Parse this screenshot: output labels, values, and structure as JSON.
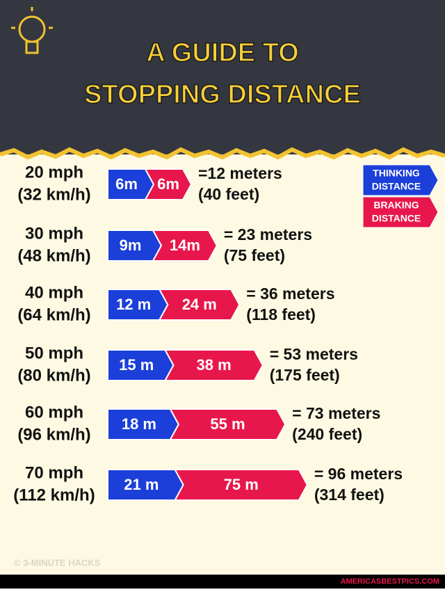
{
  "chart_data": {
    "type": "bar",
    "orientation": "horizontal",
    "stacked": true,
    "title": [
      "A GUIDE TO",
      "STOPPING DISTANCE"
    ],
    "categories": [
      [
        "20 mph",
        "(32 km/h)"
      ],
      [
        "30 mph",
        "(48 km/h)"
      ],
      [
        "40 mph",
        "(64 km/h)"
      ],
      [
        "50 mph",
        "(80 km/h)"
      ],
      [
        "60 mph",
        "(96 km/h)"
      ],
      [
        "70 mph",
        "(112 km/h)"
      ]
    ],
    "series": [
      {
        "name": [
          "THINKING",
          "DISTANCE"
        ],
        "color": "#1b3fd8",
        "values": [
          6,
          9,
          12,
          15,
          18,
          21
        ],
        "value_labels": [
          "6m",
          "9m",
          "12 m",
          "15 m",
          "18 m",
          "21 m"
        ]
      },
      {
        "name": [
          "BRAKING",
          "DISTANCE"
        ],
        "color": "#e8174b",
        "values": [
          6,
          14,
          24,
          38,
          55,
          75
        ],
        "value_labels": [
          "6m",
          "14m",
          "24 m",
          "38 m",
          "55 m",
          "75 m"
        ]
      }
    ],
    "annotations": [
      [
        "=12 meters",
        "(40 feet)"
      ],
      [
        "= 23 meters",
        "(75 feet)"
      ],
      [
        "= 36 meters",
        "(118 feet)"
      ],
      [
        "= 53 meters",
        "(175 feet)"
      ],
      [
        "= 73 meters",
        "(240 feet)"
      ],
      [
        "= 96 meters",
        "(314 feet)"
      ]
    ],
    "credit": "© 3-MINUTE HACKS",
    "footer": "AMERICASBESTPICS.COM"
  }
}
